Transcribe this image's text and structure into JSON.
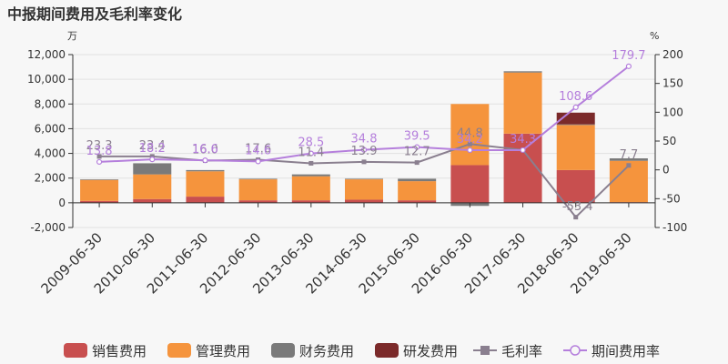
{
  "chart_data": {
    "type": "bar",
    "title": "中报期间费用及毛利率变化",
    "y_left_unit": "万",
    "y_right_unit": "%",
    "ylim": [
      -2000,
      12000
    ],
    "y_ticks": [
      "-2,000",
      "0",
      "2,000",
      "4,000",
      "6,000",
      "8,000",
      "10,000",
      "12,000"
    ],
    "y_tick_values": [
      -2000,
      0,
      2000,
      4000,
      6000,
      8000,
      10000,
      12000
    ],
    "y2lim": [
      -100,
      200
    ],
    "y2_ticks": [
      "-100",
      "-50",
      "0",
      "50",
      "100",
      "150",
      "200"
    ],
    "y2_tick_values": [
      -100,
      -50,
      0,
      50,
      100,
      150,
      200
    ],
    "categories": [
      "2009-06-30",
      "2010-06-30",
      "2011-06-30",
      "2012-06-30",
      "2013-06-30",
      "2014-06-30",
      "2015-06-30",
      "2016-06-30",
      "2017-06-30",
      "2018-06-30",
      "2019-06-30"
    ],
    "bar_series": [
      {
        "name": "销售费用",
        "color": "#c84f4f",
        "values": [
          150,
          300,
          500,
          200,
          200,
          250,
          200,
          3050,
          5600,
          2650,
          50
        ]
      },
      {
        "name": "管理费用",
        "color": "#f5943d",
        "values": [
          1700,
          2000,
          2050,
          1700,
          1950,
          1650,
          1550,
          4950,
          4950,
          3650,
          3350
        ]
      },
      {
        "name": "财务费用",
        "color": "#7a7a7a",
        "values": [
          50,
          900,
          100,
          50,
          150,
          50,
          200,
          -250,
          100,
          50,
          200
        ]
      },
      {
        "name": "研发费用",
        "color": "#7b2a2a",
        "values": [
          0,
          0,
          0,
          0,
          0,
          0,
          0,
          0,
          0,
          950,
          0
        ]
      }
    ],
    "line_series": [
      {
        "name": "毛利率",
        "color": "#8a7f8f",
        "marker": "square",
        "values": [
          23.3,
          23.4,
          16.0,
          17.6,
          11.4,
          13.9,
          12.7,
          44.8,
          34.5,
          -82.0,
          7.7
        ],
        "labels": [
          "23.3",
          "23.4",
          "16.0",
          "17.6",
          "11.4",
          "13.9",
          "12.7",
          "44.8",
          "",
          "",
          "7.7"
        ]
      },
      {
        "name": "期间费用率",
        "color": "#b57fdc",
        "marker": "circle",
        "values": [
          13.8,
          18.2,
          16.6,
          14.6,
          28.5,
          34.8,
          39.5,
          34.2,
          34.3,
          108.6,
          179.7
        ],
        "labels": [
          "13.8",
          "18.2",
          "16.6",
          "14.6",
          "28.5",
          "34.8",
          "39.5",
          "34.2",
          "34.3",
          "108.6",
          "179.7"
        ]
      }
    ],
    "hidden_label": {
      "text": "-53.4",
      "category_index": 9
    },
    "legend_position": "bottom"
  }
}
